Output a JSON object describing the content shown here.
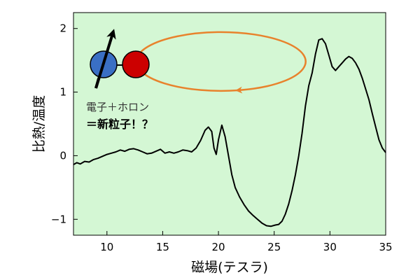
{
  "chart_data": {
    "type": "line",
    "title": "",
    "xlabel": "磁場(テスラ)",
    "ylabel": "比熱/温度",
    "xlim": [
      7,
      35
    ],
    "ylim": [
      -1.25,
      2.25
    ],
    "xticks": [
      10,
      15,
      20,
      25,
      30,
      35
    ],
    "yticks": [
      -1,
      0,
      1,
      2
    ],
    "grid": false,
    "colors": {
      "background": "#d4f7d4",
      "line": "#000000",
      "orbit": "#e8822c",
      "electron": "#3a6fc4",
      "hole": "#cc0000",
      "spin_arrow": "#000000"
    },
    "series": [
      {
        "values": [
          [
            7.0,
            -0.14
          ],
          [
            7.3,
            -0.11
          ],
          [
            7.6,
            -0.13
          ],
          [
            8.0,
            -0.09
          ],
          [
            8.4,
            -0.1
          ],
          [
            8.8,
            -0.06
          ],
          [
            9.2,
            -0.04
          ],
          [
            9.6,
            -0.01
          ],
          [
            10.0,
            0.02
          ],
          [
            10.4,
            0.04
          ],
          [
            10.8,
            0.06
          ],
          [
            11.2,
            0.09
          ],
          [
            11.6,
            0.07
          ],
          [
            12.0,
            0.1
          ],
          [
            12.4,
            0.11
          ],
          [
            12.8,
            0.09
          ],
          [
            13.2,
            0.06
          ],
          [
            13.6,
            0.03
          ],
          [
            14.0,
            0.04
          ],
          [
            14.4,
            0.07
          ],
          [
            14.8,
            0.1
          ],
          [
            15.2,
            0.04
          ],
          [
            15.6,
            0.06
          ],
          [
            16.0,
            0.04
          ],
          [
            16.4,
            0.06
          ],
          [
            16.8,
            0.09
          ],
          [
            17.2,
            0.08
          ],
          [
            17.6,
            0.06
          ],
          [
            18.0,
            0.12
          ],
          [
            18.4,
            0.24
          ],
          [
            18.8,
            0.4
          ],
          [
            19.1,
            0.45
          ],
          [
            19.4,
            0.38
          ],
          [
            19.6,
            0.12
          ],
          [
            19.8,
            0.02
          ],
          [
            20.0,
            0.25
          ],
          [
            20.3,
            0.48
          ],
          [
            20.6,
            0.3
          ],
          [
            20.9,
            0.0
          ],
          [
            21.2,
            -0.3
          ],
          [
            21.5,
            -0.5
          ],
          [
            21.9,
            -0.65
          ],
          [
            22.3,
            -0.77
          ],
          [
            22.7,
            -0.87
          ],
          [
            23.1,
            -0.94
          ],
          [
            23.5,
            -1.0
          ],
          [
            23.9,
            -1.06
          ],
          [
            24.3,
            -1.1
          ],
          [
            24.7,
            -1.11
          ],
          [
            25.1,
            -1.09
          ],
          [
            25.4,
            -1.08
          ],
          [
            25.7,
            -1.03
          ],
          [
            26.0,
            -0.92
          ],
          [
            26.3,
            -0.76
          ],
          [
            26.6,
            -0.55
          ],
          [
            26.9,
            -0.3
          ],
          [
            27.2,
            0.0
          ],
          [
            27.5,
            0.35
          ],
          [
            27.8,
            0.78
          ],
          [
            28.1,
            1.1
          ],
          [
            28.4,
            1.3
          ],
          [
            28.7,
            1.6
          ],
          [
            29.0,
            1.82
          ],
          [
            29.3,
            1.84
          ],
          [
            29.6,
            1.76
          ],
          [
            29.9,
            1.58
          ],
          [
            30.2,
            1.4
          ],
          [
            30.5,
            1.34
          ],
          [
            30.8,
            1.4
          ],
          [
            31.1,
            1.46
          ],
          [
            31.4,
            1.52
          ],
          [
            31.7,
            1.56
          ],
          [
            32.0,
            1.53
          ],
          [
            32.3,
            1.46
          ],
          [
            32.6,
            1.36
          ],
          [
            32.9,
            1.22
          ],
          [
            33.2,
            1.05
          ],
          [
            33.5,
            0.88
          ],
          [
            33.8,
            0.66
          ],
          [
            34.1,
            0.45
          ],
          [
            34.4,
            0.25
          ],
          [
            34.7,
            0.12
          ],
          [
            35.0,
            0.05
          ]
        ]
      }
    ],
    "annotations": {
      "line1": "電子＋ホロン",
      "line2": "＝新粒子！？"
    }
  }
}
